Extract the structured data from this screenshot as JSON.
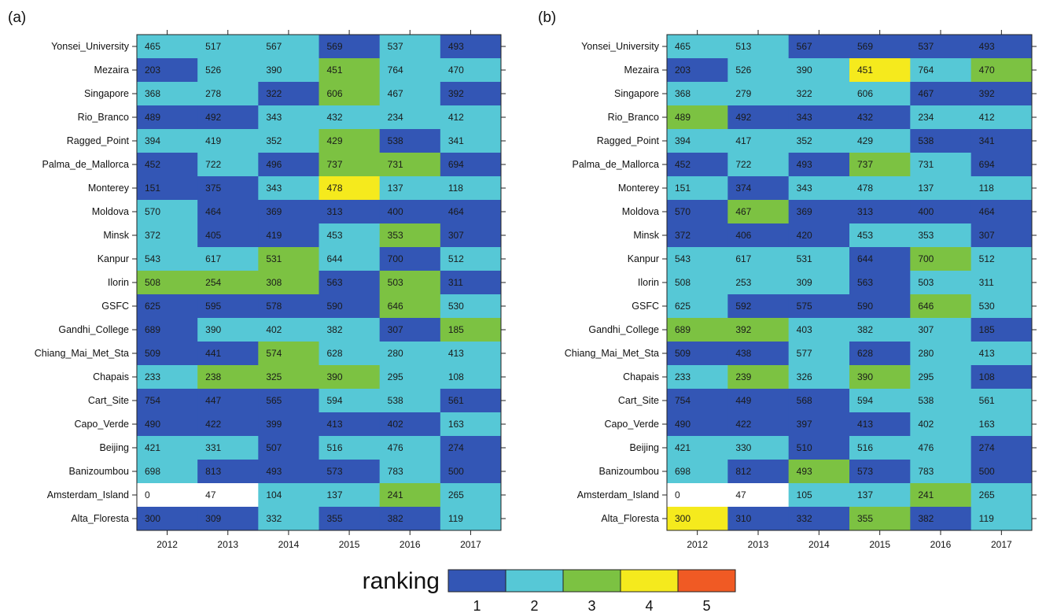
{
  "chart_data": [
    {
      "type": "heatmap",
      "panel_label": "(a)",
      "x_categories": [
        "2012",
        "2013",
        "2014",
        "2015",
        "2016",
        "2017"
      ],
      "y_categories": [
        "Yonsei_University",
        "Mezaira",
        "Singapore",
        "Rio_Branco",
        "Ragged_Point",
        "Palma_de_Mallorca",
        "Monterey",
        "Moldova",
        "Minsk",
        "Kanpur",
        "Ilorin",
        "GSFC",
        "Gandhi_College",
        "Chiang_Mai_Met_Sta",
        "Chapais",
        "Cart_Site",
        "Capo_Verde",
        "Beijing",
        "Banizoumbou",
        "Amsterdam_Island",
        "Alta_Floresta"
      ],
      "labels": [
        [
          465,
          517,
          567,
          569,
          537,
          493
        ],
        [
          203,
          526,
          390,
          451,
          764,
          470
        ],
        [
          368,
          278,
          322,
          606,
          467,
          392
        ],
        [
          489,
          492,
          343,
          432,
          234,
          412
        ],
        [
          394,
          419,
          352,
          429,
          538,
          341
        ],
        [
          452,
          722,
          496,
          737,
          731,
          694
        ],
        [
          151,
          375,
          343,
          478,
          137,
          118
        ],
        [
          570,
          464,
          369,
          313,
          400,
          464
        ],
        [
          372,
          405,
          419,
          453,
          353,
          307
        ],
        [
          543,
          617,
          531,
          644,
          700,
          512
        ],
        [
          508,
          254,
          308,
          563,
          503,
          311
        ],
        [
          625,
          595,
          578,
          590,
          646,
          530
        ],
        [
          689,
          390,
          402,
          382,
          307,
          185
        ],
        [
          509,
          441,
          574,
          628,
          280,
          413
        ],
        [
          233,
          238,
          325,
          390,
          295,
          108
        ],
        [
          754,
          447,
          565,
          594,
          538,
          561
        ],
        [
          490,
          422,
          399,
          413,
          402,
          163
        ],
        [
          421,
          331,
          507,
          516,
          476,
          274
        ],
        [
          698,
          813,
          493,
          573,
          783,
          500
        ],
        [
          0,
          47,
          104,
          137,
          241,
          265
        ],
        [
          300,
          309,
          332,
          355,
          382,
          119
        ]
      ],
      "rankings": [
        [
          2,
          2,
          2,
          1,
          2,
          1
        ],
        [
          1,
          2,
          2,
          3,
          2,
          2
        ],
        [
          2,
          2,
          1,
          3,
          2,
          1
        ],
        [
          1,
          1,
          2,
          2,
          2,
          2
        ],
        [
          2,
          2,
          2,
          3,
          1,
          2
        ],
        [
          1,
          2,
          1,
          3,
          3,
          1
        ],
        [
          1,
          1,
          2,
          4,
          2,
          2
        ],
        [
          2,
          1,
          1,
          1,
          1,
          1
        ],
        [
          2,
          1,
          1,
          2,
          3,
          1
        ],
        [
          2,
          2,
          3,
          2,
          1,
          2
        ],
        [
          3,
          3,
          3,
          1,
          3,
          1
        ],
        [
          1,
          1,
          1,
          1,
          3,
          2
        ],
        [
          1,
          2,
          2,
          2,
          1,
          3
        ],
        [
          1,
          1,
          3,
          2,
          2,
          2
        ],
        [
          2,
          3,
          3,
          3,
          2,
          2
        ],
        [
          1,
          1,
          1,
          2,
          2,
          1
        ],
        [
          1,
          1,
          1,
          1,
          1,
          2
        ],
        [
          2,
          2,
          1,
          2,
          2,
          1
        ],
        [
          2,
          1,
          1,
          1,
          2,
          1
        ],
        [
          0,
          0,
          2,
          2,
          3,
          2
        ],
        [
          1,
          1,
          2,
          1,
          1,
          2
        ]
      ]
    },
    {
      "type": "heatmap",
      "panel_label": "(b)",
      "x_categories": [
        "2012",
        "2013",
        "2014",
        "2015",
        "2016",
        "2017"
      ],
      "y_categories": [
        "Yonsei_University",
        "Mezaira",
        "Singapore",
        "Rio_Branco",
        "Ragged_Point",
        "Palma_de_Mallorca",
        "Monterey",
        "Moldova",
        "Minsk",
        "Kanpur",
        "Ilorin",
        "GSFC",
        "Gandhi_College",
        "Chiang_Mai_Met_Sta",
        "Chapais",
        "Cart_Site",
        "Capo_Verde",
        "Beijing",
        "Banizoumbou",
        "Amsterdam_Island",
        "Alta_Floresta"
      ],
      "labels": [
        [
          465,
          513,
          567,
          569,
          537,
          493
        ],
        [
          203,
          526,
          390,
          451,
          764,
          470
        ],
        [
          368,
          279,
          322,
          606,
          467,
          392
        ],
        [
          489,
          492,
          343,
          432,
          234,
          412
        ],
        [
          394,
          417,
          352,
          429,
          538,
          341
        ],
        [
          452,
          722,
          493,
          737,
          731,
          694
        ],
        [
          151,
          374,
          343,
          478,
          137,
          118
        ],
        [
          570,
          467,
          369,
          313,
          400,
          464
        ],
        [
          372,
          406,
          420,
          453,
          353,
          307
        ],
        [
          543,
          617,
          531,
          644,
          700,
          512
        ],
        [
          508,
          253,
          309,
          563,
          503,
          311
        ],
        [
          625,
          592,
          575,
          590,
          646,
          530
        ],
        [
          689,
          392,
          403,
          382,
          307,
          185
        ],
        [
          509,
          438,
          577,
          628,
          280,
          413
        ],
        [
          233,
          239,
          326,
          390,
          295,
          108
        ],
        [
          754,
          449,
          568,
          594,
          538,
          561
        ],
        [
          490,
          422,
          397,
          413,
          402,
          163
        ],
        [
          421,
          330,
          510,
          516,
          476,
          274
        ],
        [
          698,
          812,
          493,
          573,
          783,
          500
        ],
        [
          0,
          47,
          105,
          137,
          241,
          265
        ],
        [
          300,
          310,
          332,
          355,
          382,
          119
        ]
      ],
      "rankings": [
        [
          2,
          2,
          1,
          1,
          1,
          1
        ],
        [
          1,
          2,
          2,
          4,
          2,
          3
        ],
        [
          2,
          2,
          2,
          2,
          1,
          1
        ],
        [
          3,
          1,
          1,
          1,
          2,
          2
        ],
        [
          2,
          2,
          2,
          2,
          1,
          1
        ],
        [
          1,
          2,
          1,
          3,
          2,
          1
        ],
        [
          2,
          1,
          2,
          2,
          2,
          2
        ],
        [
          1,
          3,
          1,
          1,
          1,
          1
        ],
        [
          1,
          1,
          1,
          2,
          2,
          1
        ],
        [
          2,
          2,
          2,
          1,
          3,
          2
        ],
        [
          2,
          2,
          2,
          1,
          2,
          2
        ],
        [
          2,
          1,
          1,
          1,
          3,
          2
        ],
        [
          3,
          3,
          2,
          2,
          2,
          1
        ],
        [
          1,
          1,
          2,
          1,
          2,
          2
        ],
        [
          2,
          3,
          2,
          3,
          2,
          1
        ],
        [
          1,
          1,
          1,
          2,
          2,
          2
        ],
        [
          1,
          1,
          1,
          1,
          2,
          2
        ],
        [
          2,
          2,
          1,
          2,
          2,
          1
        ],
        [
          2,
          1,
          3,
          1,
          2,
          1
        ],
        [
          0,
          0,
          2,
          2,
          3,
          2
        ],
        [
          4,
          1,
          1,
          3,
          1,
          2
        ]
      ]
    }
  ],
  "legend": {
    "title": "ranking",
    "levels": [
      {
        "label": "1",
        "color": "#3356b5"
      },
      {
        "label": "2",
        "color": "#56c8d6"
      },
      {
        "label": "3",
        "color": "#7cc242"
      },
      {
        "label": "4",
        "color": "#f5ea1d"
      },
      {
        "label": "5",
        "color": "#f05a24"
      }
    ],
    "missing_color": "#ffffff"
  }
}
